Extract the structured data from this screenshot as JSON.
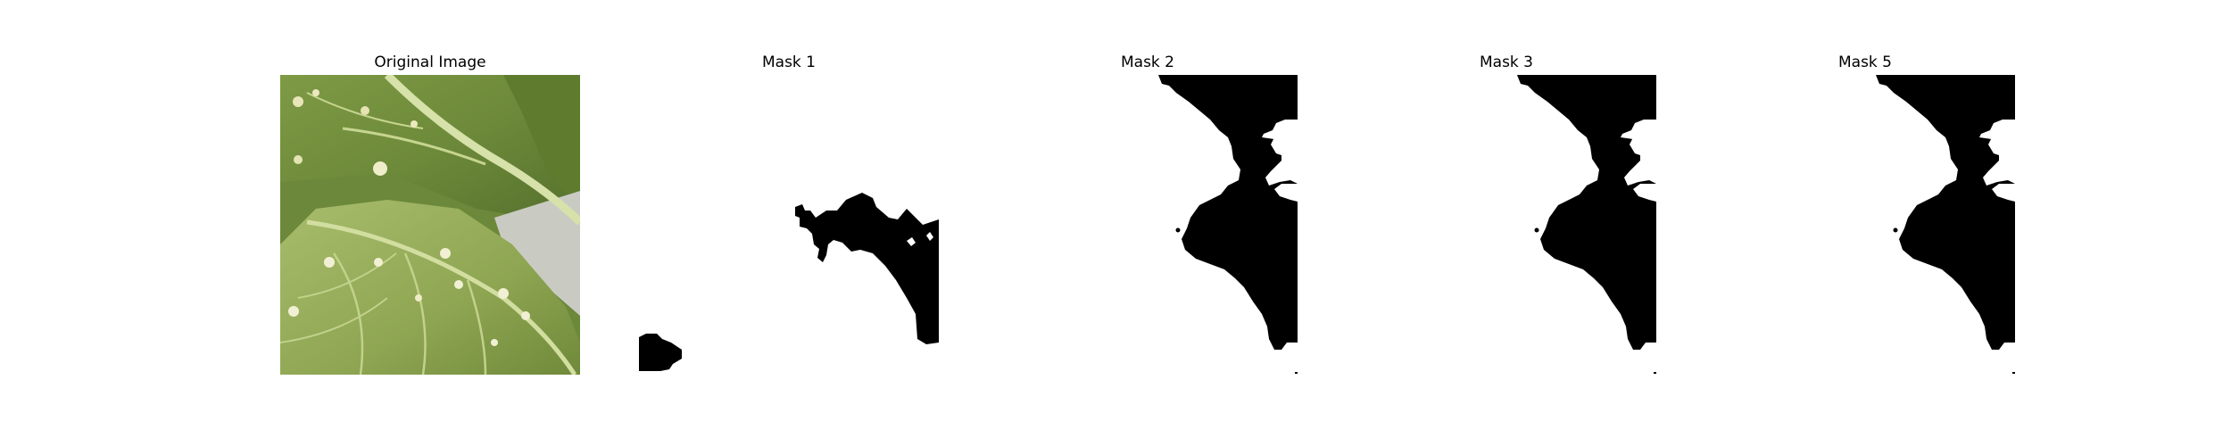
{
  "panels": [
    {
      "title": "Original Image"
    },
    {
      "title": "Mask 1"
    },
    {
      "title": "Mask 2"
    },
    {
      "title": "Mask 3"
    },
    {
      "title": "Mask 5"
    }
  ],
  "colors": {
    "background": "#ffffff",
    "mask_fill": "#000000",
    "leaf_dark": "#5f7d2f",
    "leaf_light": "#a9bf6a",
    "vein": "#cfdca0"
  }
}
